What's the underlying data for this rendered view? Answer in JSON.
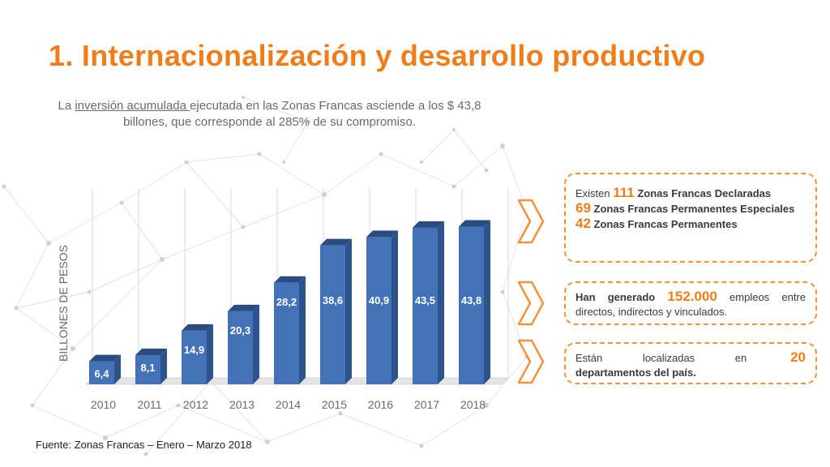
{
  "slide": {
    "title": "1. Internacionalización y desarrollo productivo",
    "subtitle_pre": "La ",
    "subtitle_link": "inversión acumulada ",
    "subtitle_post": "ejecutada en las Zonas Francas asciende a los $ 43,8 billones, que corresponde al 285% de su compromiso.",
    "source": "Fuente: Zonas Francas – Enero – Marzo 2018"
  },
  "chart_data": {
    "type": "bar",
    "categories": [
      "2010",
      "2011",
      "2012",
      "2013",
      "2014",
      "2015",
      "2016",
      "2017",
      "2018"
    ],
    "values": [
      6.4,
      8.1,
      14.9,
      20.3,
      28.2,
      38.6,
      40.9,
      43.5,
      43.8
    ],
    "data_labels": [
      "6,4",
      "8,1",
      "14,9",
      "20,3",
      "28,2",
      "38,6",
      "40,9",
      "43,5",
      "43,8"
    ],
    "ylabel": "BILLONES DE PESOS",
    "ylim": [
      0,
      50
    ],
    "grid": "vertical",
    "colors": {
      "front": "#4472b8",
      "side": "#2e538c",
      "top": "#2a4d80"
    }
  },
  "panels": {
    "box1": {
      "line1_pre": "Existen ",
      "line1_num": "111",
      "line1_post": " Zonas Francas Declaradas",
      "line2_num": "69",
      "line2_post": " Zonas Francas Permanentes Especiales",
      "line3_num": "42",
      "line3_post": " Zonas Francas Permanentes"
    },
    "box2": {
      "pre": "Han generado ",
      "num": "152.000",
      "post": " empleos entre directos, indirectos y vinculados."
    },
    "box3": {
      "pre": "Están localizadas en ",
      "num": "20",
      "post": "departamentos del país."
    }
  },
  "colors": {
    "accent": "#f07d1a",
    "border": "#f5913b"
  }
}
